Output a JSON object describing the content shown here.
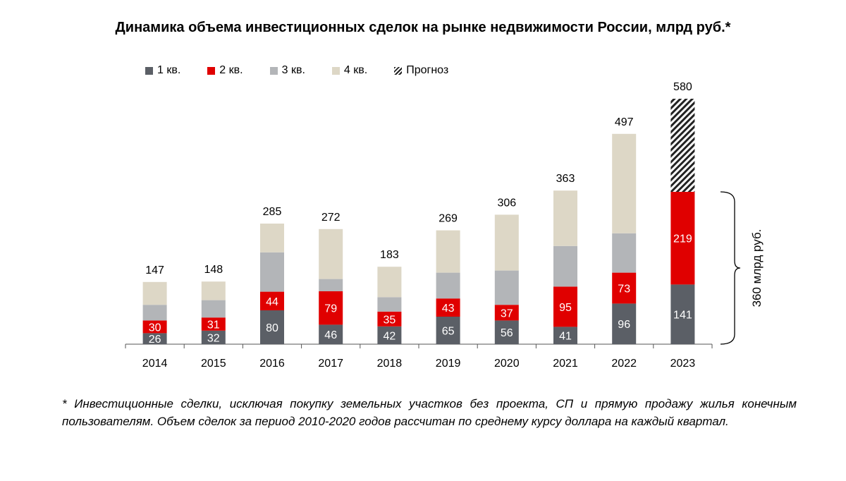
{
  "chart_data": {
    "type": "bar",
    "stacked": true,
    "title": "Динамика объема инвестиционных сделок на рынке недвижимости России, млрд руб.*",
    "categories": [
      "2014",
      "2015",
      "2016",
      "2017",
      "2018",
      "2019",
      "2020",
      "2021",
      "2022",
      "2023"
    ],
    "series": [
      {
        "name": "1 кв.",
        "color": "#5b5f66",
        "values": [
          26,
          32,
          80,
          46,
          42,
          65,
          56,
          41,
          96,
          141
        ],
        "labelColor": "#ffffff"
      },
      {
        "name": "2 кв.",
        "color": "#e00000",
        "values": [
          30,
          31,
          44,
          79,
          35,
          43,
          37,
          95,
          73,
          219
        ],
        "labelColor": "#ffffff"
      },
      {
        "name": "3 кв.",
        "color": "#b3b5b8",
        "values": [
          37,
          41,
          93,
          29,
          34,
          61,
          81,
          96,
          93,
          null
        ]
      },
      {
        "name": "4 кв.",
        "color": "#ddd7c6",
        "values": [
          54,
          44,
          68,
          118,
          72,
          100,
          132,
          131,
          235,
          null
        ]
      },
      {
        "name": "Прогноз",
        "color": "#222222",
        "pattern": "hatch",
        "values": [
          null,
          null,
          null,
          null,
          null,
          null,
          null,
          null,
          null,
          220
        ]
      }
    ],
    "totals": [
      147,
      148,
      285,
      272,
      183,
      269,
      306,
      363,
      497,
      580
    ],
    "labeled_series": [
      "1 кв.",
      "2 кв."
    ],
    "ylim": [
      0,
      580
    ],
    "bracket_label": "360 млрд руб.",
    "xlabel": "",
    "ylabel": "",
    "grid": false
  },
  "footnote": "* Инвестиционные сделки, исключая покупку земельных участков без проекта, СП и прямую продажу жилья конечным пользователям. Объем сделок за период 2010-2020 годов рассчитан по среднему курсу доллара на каждый квартал."
}
